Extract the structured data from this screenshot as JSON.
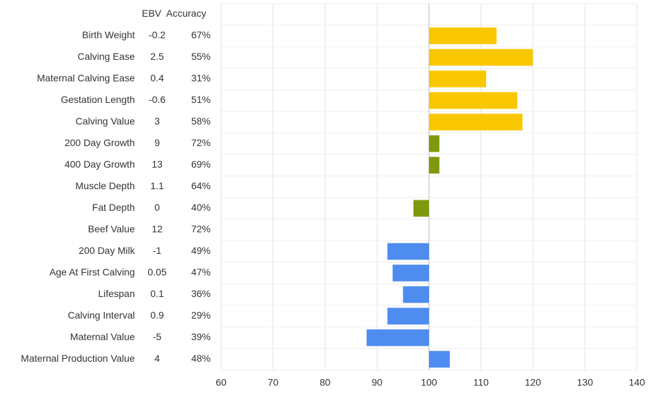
{
  "chart_data": {
    "type": "bar",
    "orientation": "horizontal",
    "columns": [
      "EBV",
      "Accuracy"
    ],
    "categories": [
      "Birth Weight",
      "Calving Ease",
      "Maternal Calving Ease",
      "Gestation Length",
      "Calving Value",
      "200 Day Growth",
      "400 Day Growth",
      "Muscle Depth",
      "Fat Depth",
      "Beef Value",
      "200 Day Milk",
      "Age At First Calving",
      "Lifespan",
      "Calving Interval",
      "Maternal Value",
      "Maternal Production Value"
    ],
    "ebv": [
      -0.2,
      2.5,
      0.4,
      -0.6,
      3,
      9,
      13,
      1.1,
      0,
      12,
      -1,
      0.05,
      0.1,
      0.9,
      -5,
      4
    ],
    "accuracy": [
      "67%",
      "55%",
      "31%",
      "51%",
      "58%",
      "72%",
      "69%",
      "64%",
      "40%",
      "72%",
      "49%",
      "47%",
      "36%",
      "29%",
      "39%",
      "48%"
    ],
    "values": [
      113,
      120,
      111,
      117,
      118,
      102,
      102,
      100,
      97,
      100,
      92,
      93,
      95,
      92,
      88,
      104
    ],
    "colors": [
      "#f9c700",
      "#f9c700",
      "#f9c700",
      "#f9c700",
      "#f9c700",
      "#7f990f",
      "#7f990f",
      "#7f990f",
      "#7f990f",
      "#7f990f",
      "#4e8cf0",
      "#4e8cf0",
      "#4e8cf0",
      "#4e8cf0",
      "#4e8cf0",
      "#4e8cf0"
    ],
    "baseline": 100,
    "xlim": [
      60,
      140
    ],
    "xticks": [
      60,
      70,
      80,
      90,
      100,
      110,
      120,
      130,
      140
    ],
    "grid": true
  }
}
